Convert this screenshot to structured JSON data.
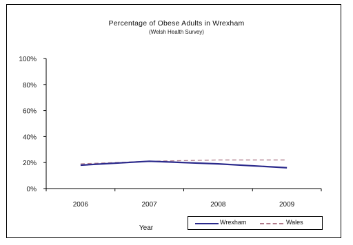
{
  "chart_data": {
    "type": "line",
    "title": "Percentage of Obese Adults in Wrexham",
    "subtitle": "(Welsh Health Survey)",
    "xlabel": "Year",
    "ylabel": "",
    "categories": [
      "2006",
      "2007",
      "2008",
      "2009"
    ],
    "ylim": [
      0,
      100
    ],
    "yticks": [
      "0%",
      "20%",
      "40%",
      "60%",
      "80%",
      "100%"
    ],
    "grid": false,
    "legend_position": "bottom-right",
    "series": [
      {
        "name": "Wrexham",
        "values": [
          18,
          21,
          19,
          16
        ],
        "color": "#2b2a8c",
        "style": "solid"
      },
      {
        "name": "Wales",
        "values": [
          19,
          21,
          22,
          22
        ],
        "color": "#b07a8a",
        "style": "dashed"
      }
    ]
  }
}
